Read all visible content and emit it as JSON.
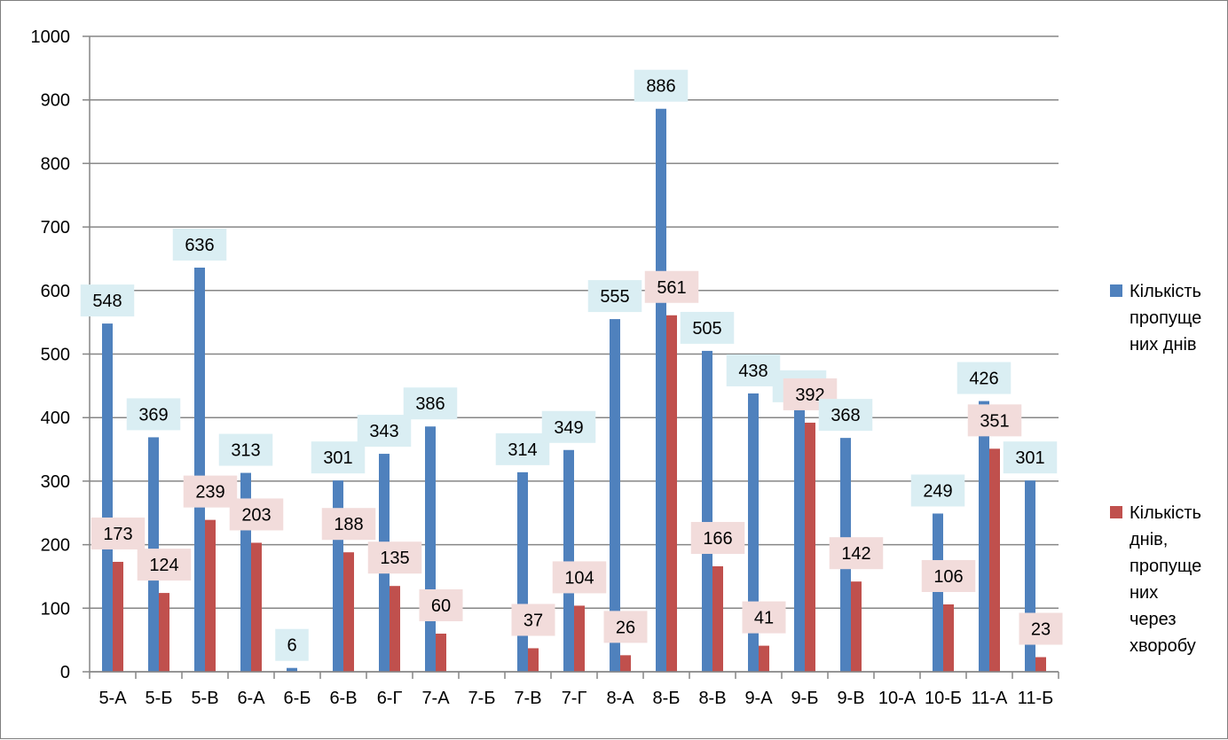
{
  "chart_data": {
    "type": "bar",
    "title": "",
    "xlabel": "",
    "ylabel": "",
    "ylim": [
      0,
      1000
    ],
    "yticks": [
      0,
      100,
      200,
      300,
      400,
      500,
      600,
      700,
      800,
      900,
      1000
    ],
    "grid": true,
    "legend_position": "right",
    "categories": [
      "5-А",
      "5-Б",
      "5-В",
      "6-А",
      "6-Б",
      "6-В",
      "6-Г",
      "7-А",
      "7-Б",
      "7-В",
      "7-Г",
      "8-А",
      "8-Б",
      "8-В",
      "9-А",
      "9-Б",
      "9-В",
      "10-А",
      "10-Б",
      "11-А",
      "11-Б"
    ],
    "series": [
      {
        "name": "Кількість пропущених днів",
        "legend_lines": [
          "Кількість",
          "пропуще",
          "них днів"
        ],
        "color": "#4f81bd",
        "label_bg": "#daeef3",
        "values": [
          548,
          369,
          636,
          313,
          6,
          301,
          343,
          386,
          null,
          314,
          349,
          555,
          886,
          505,
          438,
          413,
          368,
          null,
          249,
          426,
          301
        ]
      },
      {
        "name": "Кількість днів, пропущених через хворобу",
        "legend_lines": [
          "Кількість",
          "днів,",
          "пропуще",
          "них",
          "через",
          "хворобу"
        ],
        "color": "#c0504d",
        "label_bg": "#f2dcdb",
        "values": [
          173,
          124,
          239,
          203,
          null,
          188,
          135,
          60,
          null,
          37,
          104,
          26,
          561,
          166,
          41,
          392,
          142,
          null,
          106,
          351,
          23
        ]
      }
    ]
  }
}
